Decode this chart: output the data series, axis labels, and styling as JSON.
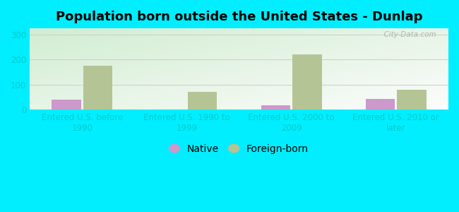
{
  "title": "Population born outside the United States - Dunlap",
  "categories": [
    "Entered U.S. before\n1990",
    "Entered U.S. 1990 to\n1999",
    "Entered U.S. 2000 to\n2009",
    "Entered U.S. 2010 or\nlater"
  ],
  "native_values": [
    40,
    0,
    18,
    42
  ],
  "foreign_values": [
    175,
    70,
    220,
    80
  ],
  "native_color": "#cc99cc",
  "foreign_color": "#b5c494",
  "background_color": "#00eeff",
  "ylim": [
    0,
    325
  ],
  "yticks": [
    0,
    100,
    200,
    300
  ],
  "native_label": "Native",
  "foreign_label": "Foreign-born",
  "bar_width": 0.28,
  "watermark": "  City-Data.com",
  "title_fontsize": 13,
  "tick_fontsize": 8.5,
  "legend_fontsize": 10,
  "tick_color": "#00dddd",
  "label_color": "#00cccc"
}
